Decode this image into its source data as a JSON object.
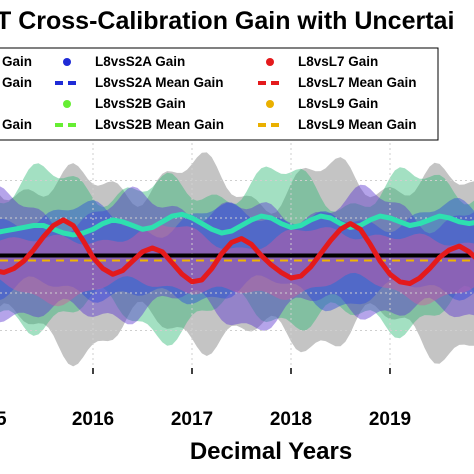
{
  "chart_data": {
    "type": "line",
    "title": "T Cross-Calibration Gain with Uncertai",
    "xlabel": "Decimal Years",
    "ylabel": "",
    "x_ticks": [
      "5",
      "2016",
      "2017",
      "2018",
      "2019"
    ],
    "xlim": [
      2015.0,
      2020.0
    ],
    "ylim": [
      0.94,
      1.06
    ],
    "reference_line": 1.0,
    "grid": true,
    "legend_placement": "top",
    "legend": [
      {
        "label": "Gain",
        "color": "#0000ff",
        "marker": "dot"
      },
      {
        "label": "L8vsS2A Gain",
        "color": "#1f2bd6",
        "marker": "dot"
      },
      {
        "label": "L8vsL7 Gain",
        "color": "#e41a1c",
        "marker": "dot"
      },
      {
        "label": "Gain",
        "color": "#0000ff",
        "marker": "dash"
      },
      {
        "label": "L8vsS2A Mean Gain",
        "color": "#1f2bd6",
        "marker": "dash"
      },
      {
        "label": "L8vsL7 Mean Gain",
        "color": "#e41a1c",
        "marker": "dash"
      },
      {
        "label": "L8vsS2B Gain",
        "color": "#66ee33",
        "marker": "dot"
      },
      {
        "label": "L8vsL9 Gain",
        "color": "#eab000",
        "marker": "dot"
      },
      {
        "label": "Gain",
        "color": "#2ee0b0",
        "marker": "dash"
      },
      {
        "label": "L8vsS2B Mean Gain",
        "color": "#66ee33",
        "marker": "dash"
      },
      {
        "label": "L8vsL9 Mean Gain",
        "color": "#eab000",
        "marker": "dash"
      }
    ],
    "series": [
      {
        "name": "L8vsL7 Gain",
        "color": "#e41a1c",
        "x": [
          2015.0,
          2015.1,
          2015.2,
          2015.3,
          2015.4,
          2015.5,
          2015.6,
          2015.7,
          2015.8,
          2015.9,
          2016.0,
          2016.1,
          2016.2,
          2016.3,
          2016.4,
          2016.5,
          2016.6,
          2016.7,
          2016.8,
          2016.9,
          2017.0,
          2017.1,
          2017.2,
          2017.3,
          2017.4,
          2017.5,
          2017.6,
          2017.7,
          2017.8,
          2017.9,
          2018.0,
          2018.1,
          2018.2,
          2018.3,
          2018.4,
          2018.5,
          2018.6,
          2018.7,
          2018.8,
          2018.9,
          2019.0,
          2019.1,
          2019.2,
          2019.3,
          2019.4,
          2019.5,
          2019.6,
          2019.7,
          2019.8,
          2019.9,
          2020.0
        ],
        "y": [
          0.992,
          0.991,
          0.993,
          0.997,
          1.003,
          1.01,
          1.016,
          1.019,
          1.016,
          1.008,
          0.999,
          0.993,
          0.99,
          0.992,
          0.997,
          1.002,
          1.004,
          1.002,
          0.996,
          0.99,
          0.986,
          0.987,
          0.993,
          1.001,
          1.007,
          1.009,
          1.006,
          1.0,
          0.995,
          0.991,
          0.988,
          0.989,
          0.994,
          1.001,
          1.008,
          1.014,
          1.017,
          1.014,
          1.006,
          0.997,
          0.99,
          0.986,
          0.985,
          0.988,
          0.993,
          0.999,
          1.003,
          1.005,
          1.002,
          0.997,
          0.994
        ]
      },
      {
        "name": "L8vsS2B Mean Gain",
        "color": "#2ee0b0",
        "x": [
          2015.0,
          2015.1,
          2015.2,
          2015.3,
          2015.4,
          2015.5,
          2015.6,
          2015.7,
          2015.8,
          2015.9,
          2016.0,
          2016.1,
          2016.2,
          2016.3,
          2016.4,
          2016.5,
          2016.6,
          2016.7,
          2016.8,
          2016.9,
          2017.0,
          2017.1,
          2017.2,
          2017.3,
          2017.4,
          2017.5,
          2017.6,
          2017.7,
          2017.8,
          2017.9,
          2018.0,
          2018.1,
          2018.2,
          2018.3,
          2018.4,
          2018.5,
          2018.6,
          2018.7,
          2018.8,
          2018.9,
          2019.0,
          2019.1,
          2019.2,
          2019.3,
          2019.4,
          2019.5,
          2019.6,
          2019.7,
          2019.8,
          2019.9,
          2020.0
        ],
        "y": [
          1.012,
          1.013,
          1.014,
          1.015,
          1.016,
          1.016,
          1.014,
          1.012,
          1.011,
          1.012,
          1.014,
          1.017,
          1.019,
          1.018,
          1.016,
          1.014,
          1.015,
          1.018,
          1.021,
          1.022,
          1.02,
          1.017,
          1.014,
          1.012,
          1.013,
          1.016,
          1.019,
          1.021,
          1.02,
          1.017,
          1.015,
          1.016,
          1.019,
          1.021,
          1.02,
          1.017,
          1.015,
          1.016,
          1.019,
          1.021,
          1.02,
          1.018,
          1.016,
          1.017,
          1.019,
          1.021,
          1.02,
          1.018,
          1.017,
          1.018,
          1.019
        ]
      }
    ],
    "uncertainty_bands": [
      {
        "color": "#7c7c7c",
        "center": 0.999,
        "halfwidth": 0.04
      },
      {
        "color": "#33bb77",
        "center": 1.002,
        "halfwidth": 0.034
      },
      {
        "color": "#5c35d1",
        "center": 0.998,
        "halfwidth": 0.027
      },
      {
        "color": "#2d4bdd",
        "center": 1.0,
        "halfwidth": 0.02
      },
      {
        "color": "#d05aa0",
        "center": 0.996,
        "halfwidth": 0.014
      }
    ]
  }
}
